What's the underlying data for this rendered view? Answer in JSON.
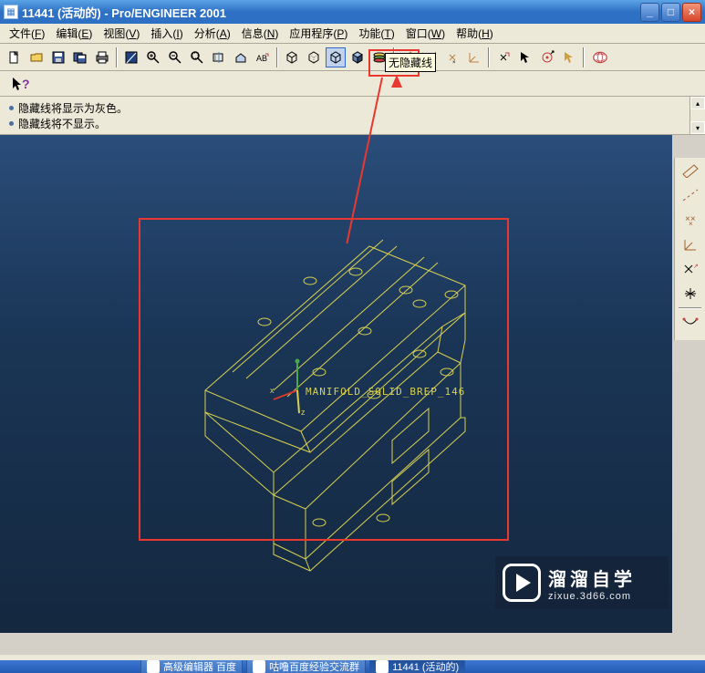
{
  "title": "11441 (活动的) - Pro/ENGINEER 2001",
  "window_buttons": {
    "min": "_",
    "max": "□",
    "close": "×"
  },
  "menu": [
    {
      "label": "文件",
      "key": "F"
    },
    {
      "label": "编辑",
      "key": "E"
    },
    {
      "label": "视图",
      "key": "V"
    },
    {
      "label": "插入",
      "key": "I"
    },
    {
      "label": "分析",
      "key": "A"
    },
    {
      "label": "信息",
      "key": "N"
    },
    {
      "label": "应用程序",
      "key": "P"
    },
    {
      "label": "功能",
      "key": "T"
    },
    {
      "label": "窗口",
      "key": "W"
    },
    {
      "label": "帮助",
      "key": "H"
    }
  ],
  "tooltip": "无隐藏线",
  "info_lines": [
    "隐藏线将显示为灰色。",
    "隐藏线将不显示。"
  ],
  "model_label": "MANIFOLD_SOLID_BREP_146",
  "taskbar": [
    {
      "label": "高级编辑器 百度",
      "active": false
    },
    {
      "label": "咕噜百度经验交流群",
      "active": false
    },
    {
      "label": "11441 (活动的)",
      "active": true
    }
  ],
  "watermark": {
    "cn": "溜溜自学",
    "en": "zixue.3d66.com"
  },
  "colors": {
    "wireframe": "#d8d050",
    "axis_x": "#d43a2a",
    "axis_y": "#4aa84a",
    "axis_z": "#d8d050",
    "highlight": "#e8382f"
  },
  "highlight_arrow": {
    "target_tooltip": "无隐藏线"
  }
}
